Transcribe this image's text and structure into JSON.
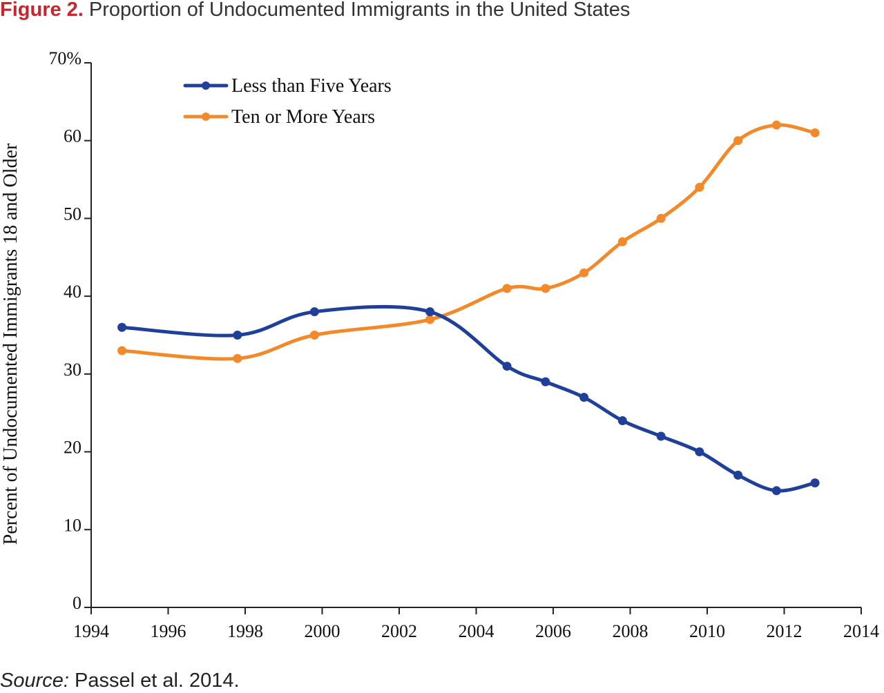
{
  "figure": {
    "label": "Figure 2.",
    "title": "Proportion of Undocumented Immigrants in the United States"
  },
  "source": {
    "label": "Source:",
    "text": "Passel et al. 2014."
  },
  "colors": {
    "less_than_five": "#1f3f99",
    "ten_or_more": "#f28a2b",
    "title_accent": "#c8252c"
  },
  "chart_data": {
    "type": "line",
    "ylabel": "Percent of Undocumented  Immigrants 18 and Older",
    "xlabel": "",
    "xlim": [
      1994,
      2014
    ],
    "ylim": [
      0,
      70
    ],
    "x_ticks": [
      "1994",
      "1996",
      "1998",
      "2000",
      "2002",
      "2004",
      "2006",
      "2008",
      "2010",
      "2012",
      "2014"
    ],
    "y_ticks": [
      "0",
      "10",
      "20",
      "30",
      "40",
      "50",
      "60",
      "70%"
    ],
    "grid": false,
    "legend_position": "top-left",
    "series": [
      {
        "name": "Less than Five Years",
        "color": "#1f3f99",
        "x": [
          1995,
          1998,
          2000,
          2003,
          2005,
          2006,
          2007,
          2008,
          2009,
          2010,
          2011,
          2012,
          2013
        ],
        "y": [
          36,
          35,
          38,
          38,
          31,
          29,
          27,
          24,
          22,
          20,
          17,
          15,
          16
        ]
      },
      {
        "name": "Ten or More Years",
        "color": "#f28a2b",
        "x": [
          1995,
          1998,
          2000,
          2003,
          2005,
          2006,
          2007,
          2008,
          2009,
          2010,
          2011,
          2012,
          2013
        ],
        "y": [
          33,
          32,
          35,
          37,
          41,
          41,
          43,
          47,
          50,
          54,
          60,
          62,
          61
        ]
      }
    ]
  }
}
